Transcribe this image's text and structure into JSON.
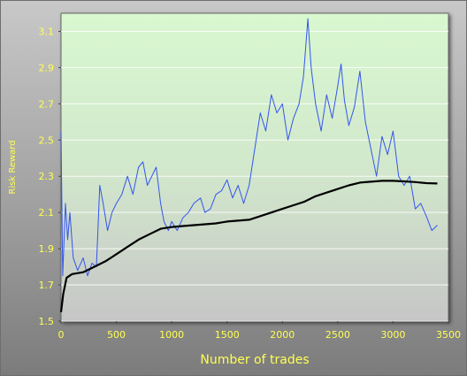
{
  "chart_data": {
    "type": "line",
    "title": "",
    "xlabel": "Number of trades",
    "ylabel": "Risk Reward",
    "xlim": [
      0,
      3500
    ],
    "ylim": [
      1.5,
      3.2
    ],
    "x_ticks": [
      0,
      500,
      1000,
      1500,
      2000,
      2500,
      3000,
      3500
    ],
    "y_ticks": [
      1.5,
      1.7,
      1.9,
      2.1,
      2.3,
      2.5,
      2.7,
      2.9,
      3.1
    ],
    "grid": true,
    "legend": "none",
    "series": [
      {
        "color": "#3355ee",
        "points": [
          [
            0,
            2.55
          ],
          [
            15,
            1.75
          ],
          [
            40,
            2.15
          ],
          [
            60,
            1.95
          ],
          [
            80,
            2.1
          ],
          [
            110,
            1.85
          ],
          [
            150,
            1.78
          ],
          [
            200,
            1.85
          ],
          [
            240,
            1.75
          ],
          [
            280,
            1.82
          ],
          [
            320,
            1.8
          ],
          [
            350,
            2.25
          ],
          [
            380,
            2.15
          ],
          [
            420,
            2.0
          ],
          [
            460,
            2.1
          ],
          [
            500,
            2.15
          ],
          [
            550,
            2.2
          ],
          [
            600,
            2.3
          ],
          [
            650,
            2.2
          ],
          [
            700,
            2.35
          ],
          [
            740,
            2.38
          ],
          [
            780,
            2.25
          ],
          [
            820,
            2.3
          ],
          [
            860,
            2.35
          ],
          [
            900,
            2.15
          ],
          [
            930,
            2.05
          ],
          [
            970,
            2.0
          ],
          [
            1000,
            2.05
          ],
          [
            1050,
            2.0
          ],
          [
            1100,
            2.07
          ],
          [
            1150,
            2.1
          ],
          [
            1200,
            2.15
          ],
          [
            1260,
            2.18
          ],
          [
            1300,
            2.1
          ],
          [
            1350,
            2.12
          ],
          [
            1400,
            2.2
          ],
          [
            1450,
            2.22
          ],
          [
            1500,
            2.28
          ],
          [
            1550,
            2.18
          ],
          [
            1600,
            2.25
          ],
          [
            1650,
            2.15
          ],
          [
            1700,
            2.25
          ],
          [
            1750,
            2.45
          ],
          [
            1800,
            2.65
          ],
          [
            1850,
            2.55
          ],
          [
            1900,
            2.75
          ],
          [
            1950,
            2.65
          ],
          [
            2000,
            2.7
          ],
          [
            2050,
            2.5
          ],
          [
            2100,
            2.62
          ],
          [
            2150,
            2.7
          ],
          [
            2190,
            2.85
          ],
          [
            2230,
            3.17
          ],
          [
            2260,
            2.9
          ],
          [
            2300,
            2.7
          ],
          [
            2350,
            2.55
          ],
          [
            2400,
            2.75
          ],
          [
            2450,
            2.62
          ],
          [
            2500,
            2.8
          ],
          [
            2530,
            2.92
          ],
          [
            2560,
            2.72
          ],
          [
            2600,
            2.58
          ],
          [
            2650,
            2.68
          ],
          [
            2700,
            2.88
          ],
          [
            2750,
            2.6
          ],
          [
            2800,
            2.45
          ],
          [
            2850,
            2.3
          ],
          [
            2900,
            2.52
          ],
          [
            2950,
            2.42
          ],
          [
            3000,
            2.55
          ],
          [
            3050,
            2.3
          ],
          [
            3100,
            2.25
          ],
          [
            3150,
            2.3
          ],
          [
            3200,
            2.12
          ],
          [
            3250,
            2.15
          ],
          [
            3300,
            2.08
          ],
          [
            3350,
            2.0
          ],
          [
            3400,
            2.03
          ]
        ]
      },
      {
        "color": "#000000",
        "points": [
          [
            0,
            1.55
          ],
          [
            20,
            1.65
          ],
          [
            50,
            1.74
          ],
          [
            100,
            1.76
          ],
          [
            200,
            1.77
          ],
          [
            300,
            1.8
          ],
          [
            400,
            1.83
          ],
          [
            500,
            1.87
          ],
          [
            600,
            1.91
          ],
          [
            700,
            1.95
          ],
          [
            800,
            1.98
          ],
          [
            900,
            2.01
          ],
          [
            1000,
            2.02
          ],
          [
            1100,
            2.025
          ],
          [
            1200,
            2.03
          ],
          [
            1300,
            2.035
          ],
          [
            1400,
            2.04
          ],
          [
            1500,
            2.05
          ],
          [
            1600,
            2.055
          ],
          [
            1700,
            2.06
          ],
          [
            1800,
            2.08
          ],
          [
            1900,
            2.1
          ],
          [
            2000,
            2.12
          ],
          [
            2100,
            2.14
          ],
          [
            2200,
            2.16
          ],
          [
            2300,
            2.19
          ],
          [
            2400,
            2.21
          ],
          [
            2500,
            2.23
          ],
          [
            2600,
            2.25
          ],
          [
            2700,
            2.265
          ],
          [
            2800,
            2.27
          ],
          [
            2900,
            2.275
          ],
          [
            3000,
            2.275
          ],
          [
            3100,
            2.272
          ],
          [
            3200,
            2.268
          ],
          [
            3300,
            2.262
          ],
          [
            3400,
            2.26
          ]
        ]
      }
    ]
  }
}
